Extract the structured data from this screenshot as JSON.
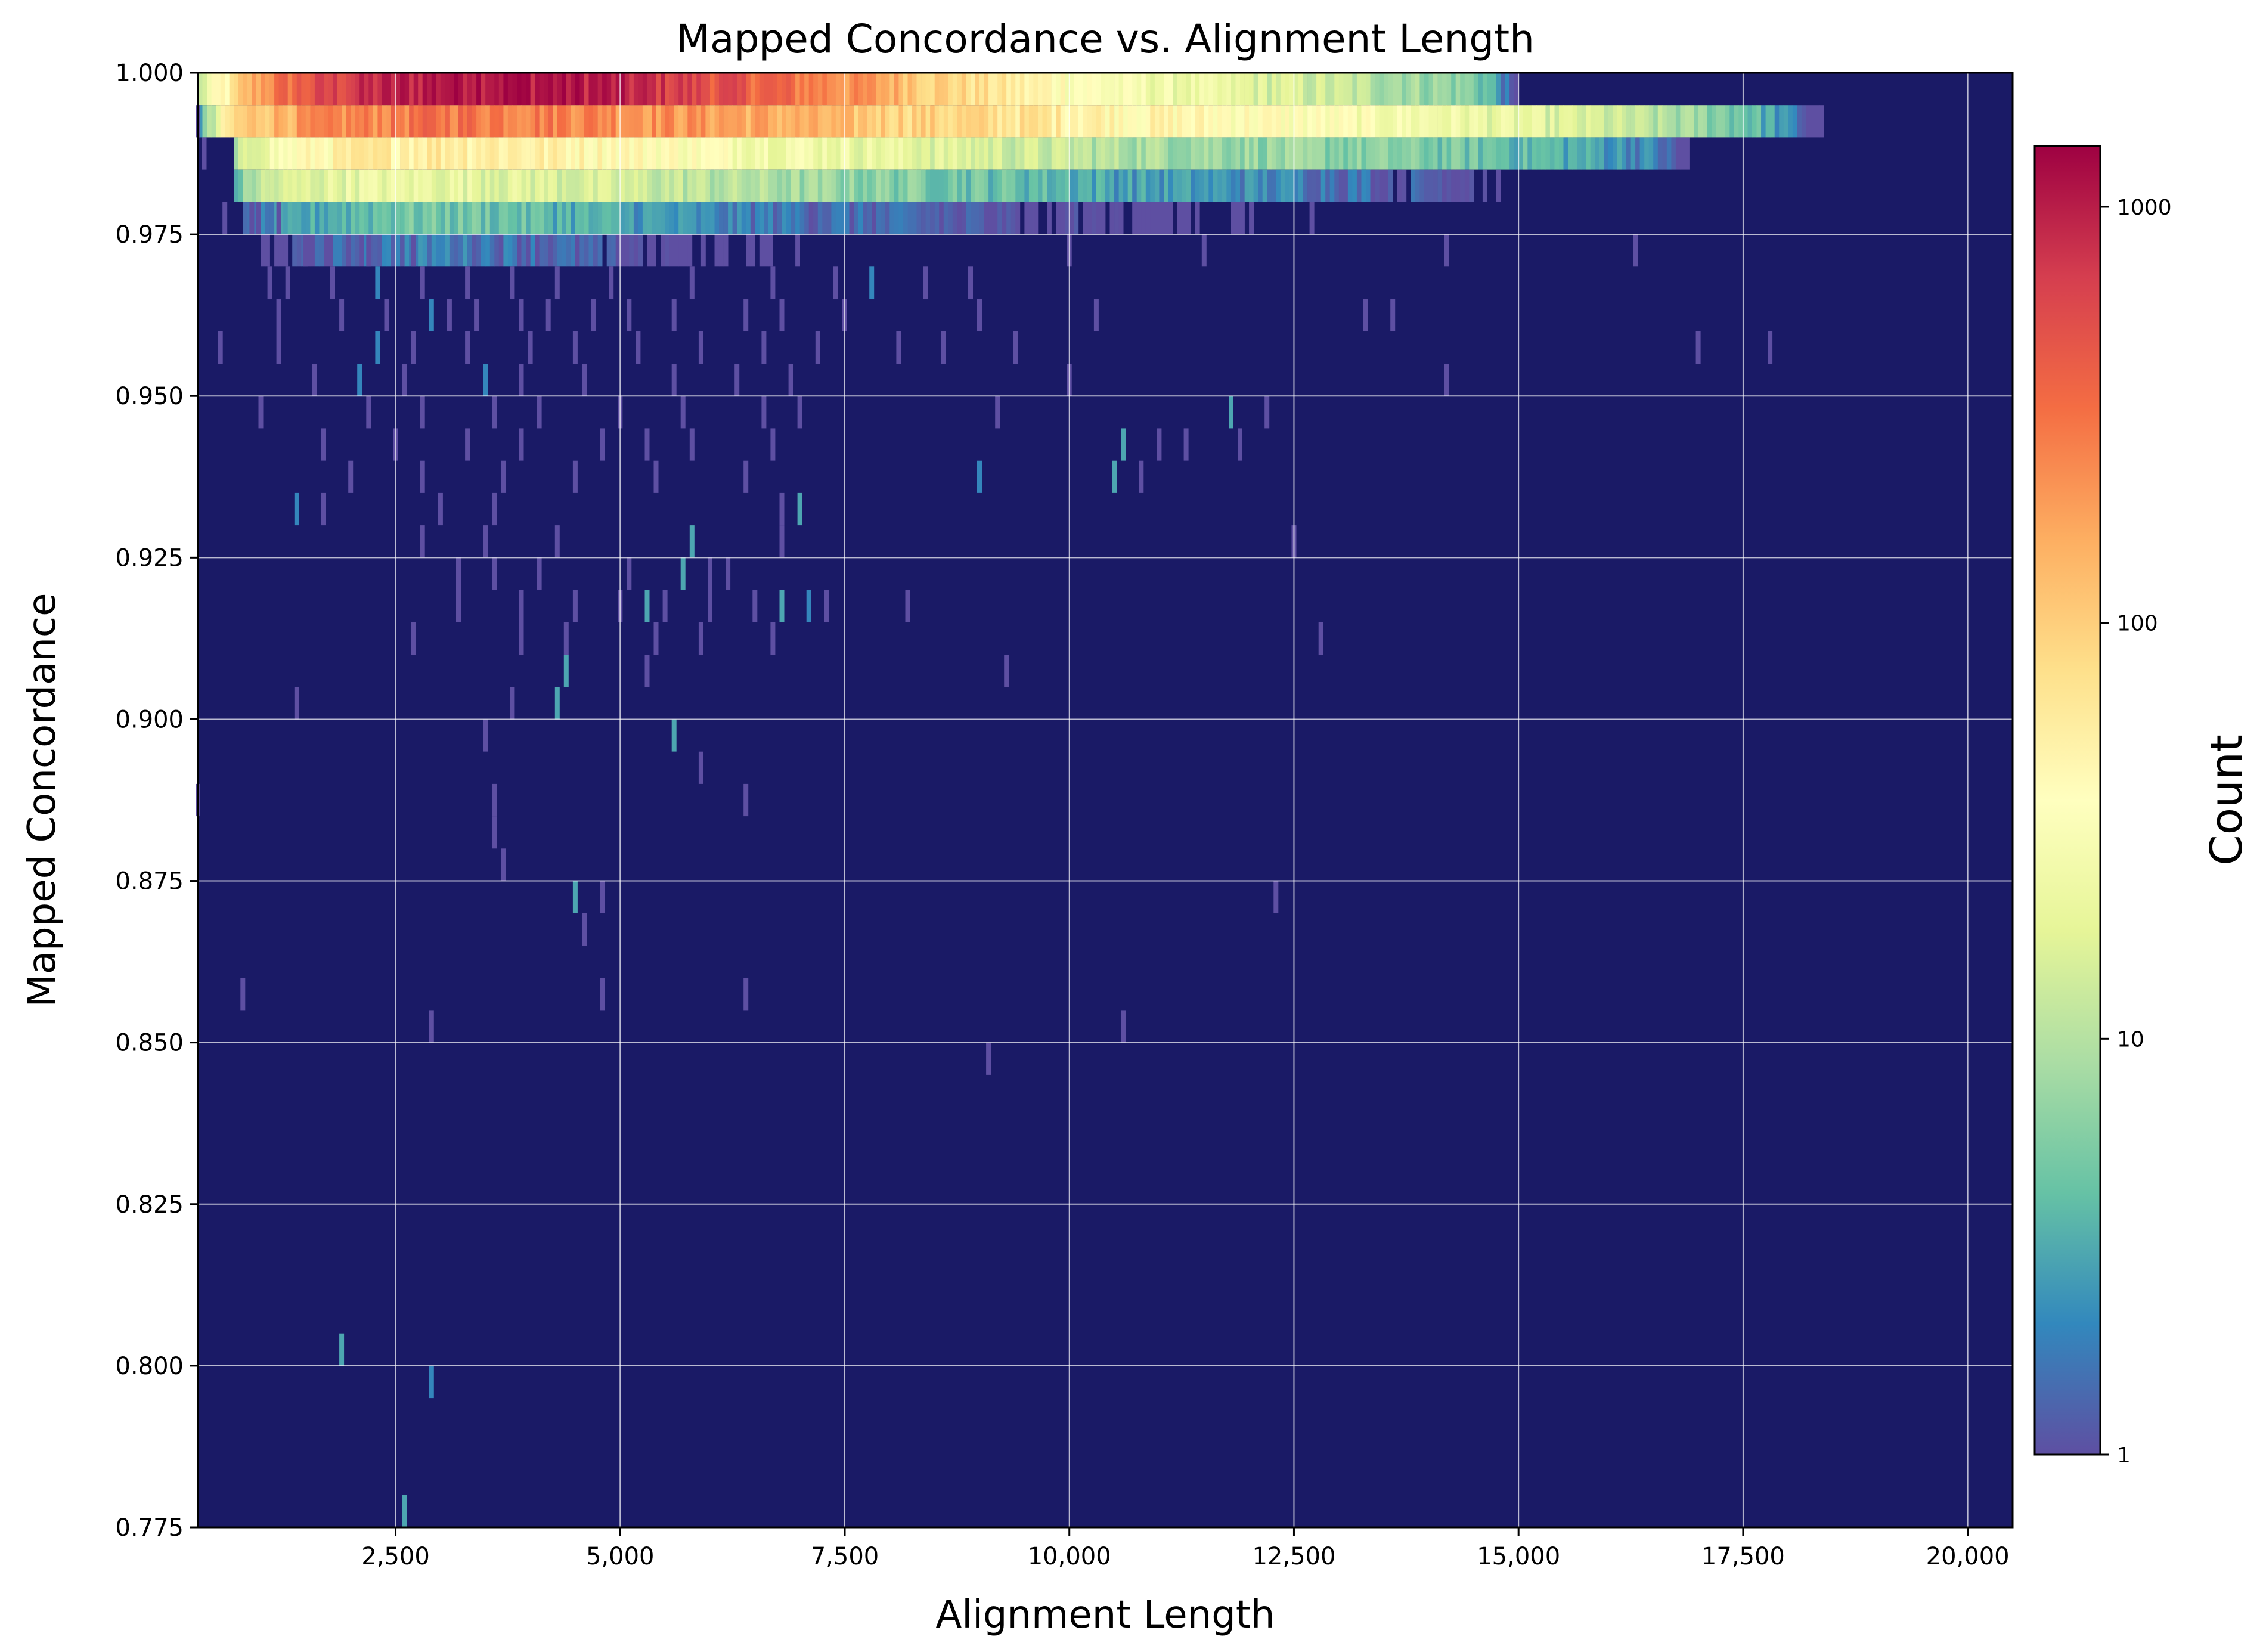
{
  "chart_data": {
    "type": "heatmap",
    "title": "Mapped Concordance vs. Alignment Length",
    "xlabel": "Alignment Length",
    "ylabel": "Mapped Concordance",
    "xlim": [
      300,
      20500
    ],
    "ylim": [
      0.775,
      1.0
    ],
    "xticks": [
      2500,
      5000,
      7500,
      10000,
      12500,
      15000,
      17500,
      20000
    ],
    "xtick_labels": [
      "2,500",
      "5,000",
      "7,500",
      "10,000",
      "12,500",
      "15,000",
      "17,500",
      "20,000"
    ],
    "yticks": [
      0.775,
      0.8,
      0.825,
      0.85,
      0.875,
      0.9,
      0.925,
      0.95,
      0.975,
      1.0
    ],
    "ytick_labels": [
      "0.775",
      "0.800",
      "0.825",
      "0.850",
      "0.875",
      "0.900",
      "0.925",
      "0.950",
      "0.975",
      "1.000"
    ],
    "grid": true,
    "background_color": "#1a1a66",
    "colorbar": {
      "label": "Count",
      "scale": "log",
      "range": [
        1,
        1400
      ],
      "ticks": [
        1,
        10,
        100,
        1000
      ],
      "tick_labels": [
        "1",
        "10",
        "100",
        "1000"
      ],
      "colormap": "Spectral_r"
    },
    "bands": [
      {
        "y_range": [
          0.995,
          1.0
        ],
        "profile": [
          [
            300,
            8
          ],
          [
            700,
            60
          ],
          [
            1000,
            200
          ],
          [
            2000,
            700
          ],
          [
            3300,
            1300
          ],
          [
            4600,
            1100
          ],
          [
            5800,
            600
          ],
          [
            7000,
            300
          ],
          [
            8500,
            100
          ],
          [
            9500,
            50
          ],
          [
            10500,
            30
          ],
          [
            12000,
            18
          ],
          [
            13500,
            10
          ],
          [
            14500,
            6
          ],
          [
            15000,
            0
          ]
        ]
      },
      {
        "y_range": [
          0.99,
          0.995
        ],
        "profile": [
          [
            300,
            2
          ],
          [
            500,
            12
          ],
          [
            700,
            80
          ],
          [
            1500,
            200
          ],
          [
            3000,
            330
          ],
          [
            4500,
            280
          ],
          [
            6000,
            200
          ],
          [
            7500,
            120
          ],
          [
            9000,
            80
          ],
          [
            10500,
            50
          ],
          [
            12000,
            40
          ],
          [
            13500,
            30
          ],
          [
            15000,
            20
          ],
          [
            16500,
            10
          ],
          [
            17500,
            5
          ],
          [
            18000,
            2
          ],
          [
            18500,
            0
          ]
        ]
      },
      {
        "y_range": [
          0.985,
          0.99
        ],
        "profile": [
          [
            700,
            6
          ],
          [
            1000,
            25
          ],
          [
            2000,
            55
          ],
          [
            3000,
            65
          ],
          [
            4500,
            50
          ],
          [
            6000,
            35
          ],
          [
            7500,
            24
          ],
          [
            9000,
            16
          ],
          [
            10500,
            10
          ],
          [
            12500,
            7
          ],
          [
            14500,
            5
          ],
          [
            16500,
            2
          ],
          [
            17000,
            0
          ]
        ]
      },
      {
        "y_range": [
          0.98,
          0.985
        ],
        "profile": [
          [
            700,
            3
          ],
          [
            1000,
            12
          ],
          [
            2000,
            22
          ],
          [
            3000,
            22
          ],
          [
            4500,
            16
          ],
          [
            6000,
            11
          ],
          [
            7500,
            7
          ],
          [
            9000,
            5
          ],
          [
            10500,
            3
          ],
          [
            12500,
            2
          ],
          [
            14500,
            1
          ],
          [
            15000,
            0
          ]
        ]
      },
      {
        "y_range": [
          0.975,
          0.98
        ],
        "profile": [
          [
            800,
            1
          ],
          [
            1500,
            3
          ],
          [
            2500,
            5
          ],
          [
            3500,
            5
          ],
          [
            4500,
            3.5
          ],
          [
            6000,
            2
          ],
          [
            7500,
            1.5
          ],
          [
            9500,
            1
          ],
          [
            10500,
            0.8
          ],
          [
            12000,
            0.5
          ],
          [
            12500,
            0
          ]
        ]
      },
      {
        "y_range": [
          0.97,
          0.975
        ],
        "profile": [
          [
            1000,
            0.6
          ],
          [
            2000,
            1.5
          ],
          [
            3000,
            2
          ],
          [
            4000,
            1.6
          ],
          [
            5000,
            1
          ],
          [
            6000,
            0.6
          ],
          [
            7000,
            0.3
          ],
          [
            8000,
            0
          ]
        ]
      }
    ],
    "sparse_points": [
      [
        300,
        0.9925,
        1
      ],
      [
        370,
        0.9875,
        1
      ],
      [
        600,
        0.9775,
        1
      ],
      [
        900,
        0.9775,
        1
      ],
      [
        1200,
        0.9775,
        1
      ],
      [
        1500,
        0.9725,
        1
      ],
      [
        2200,
        0.9725,
        1
      ],
      [
        2700,
        0.9725,
        1
      ],
      [
        1100,
        0.9675,
        1
      ],
      [
        1300,
        0.9675,
        1
      ],
      [
        1800,
        0.9675,
        1
      ],
      [
        2300,
        0.9675,
        2
      ],
      [
        2800,
        0.9675,
        1
      ],
      [
        3300,
        0.9675,
        1
      ],
      [
        3800,
        0.9675,
        1
      ],
      [
        4300,
        0.9675,
        1
      ],
      [
        4900,
        0.9675,
        1
      ],
      [
        5800,
        0.9675,
        1
      ],
      [
        6700,
        0.9675,
        1
      ],
      [
        7400,
        0.9675,
        1
      ],
      [
        8400,
        0.9675,
        1
      ],
      [
        8900,
        0.9675,
        1
      ],
      [
        10000,
        0.9725,
        1
      ],
      [
        11500,
        0.9725,
        1
      ],
      [
        12700,
        0.9775,
        1
      ],
      [
        14200,
        0.9725,
        1
      ],
      [
        16300,
        0.9725,
        1
      ],
      [
        1200,
        0.9625,
        1
      ],
      [
        1900,
        0.9625,
        1
      ],
      [
        2400,
        0.9625,
        1
      ],
      [
        2900,
        0.9625,
        2
      ],
      [
        3100,
        0.9625,
        1
      ],
      [
        3400,
        0.9625,
        1
      ],
      [
        3900,
        0.9625,
        1
      ],
      [
        4200,
        0.9625,
        1
      ],
      [
        4700,
        0.9625,
        1
      ],
      [
        5100,
        0.9625,
        1
      ],
      [
        5600,
        0.9625,
        1
      ],
      [
        6400,
        0.9625,
        1
      ],
      [
        6800,
        0.9625,
        1
      ],
      [
        7500,
        0.9625,
        1
      ],
      [
        7800,
        0.9675,
        2
      ],
      [
        9000,
        0.9625,
        1
      ],
      [
        10300,
        0.9625,
        1
      ],
      [
        13300,
        0.9625,
        1
      ],
      [
        13600,
        0.9625,
        1
      ],
      [
        550,
        0.9575,
        1
      ],
      [
        1200,
        0.9575,
        1
      ],
      [
        2300,
        0.9575,
        2
      ],
      [
        2700,
        0.9575,
        1
      ],
      [
        3300,
        0.9575,
        1
      ],
      [
        4000,
        0.9575,
        1
      ],
      [
        4500,
        0.9575,
        1
      ],
      [
        5200,
        0.9575,
        1
      ],
      [
        5900,
        0.9575,
        1
      ],
      [
        6600,
        0.9575,
        1
      ],
      [
        7200,
        0.9575,
        1
      ],
      [
        8100,
        0.9575,
        1
      ],
      [
        8600,
        0.9575,
        1
      ],
      [
        9400,
        0.9575,
        1
      ],
      [
        17000,
        0.9575,
        1
      ],
      [
        17800,
        0.9575,
        1
      ],
      [
        1600,
        0.9525,
        1
      ],
      [
        2100,
        0.9525,
        2
      ],
      [
        2600,
        0.9525,
        1
      ],
      [
        3500,
        0.9525,
        2
      ],
      [
        3900,
        0.9525,
        1
      ],
      [
        4600,
        0.9525,
        1
      ],
      [
        5600,
        0.9525,
        1
      ],
      [
        6300,
        0.9525,
        1
      ],
      [
        6900,
        0.9525,
        1
      ],
      [
        10000,
        0.9525,
        1
      ],
      [
        14200,
        0.9525,
        1
      ],
      [
        1000,
        0.9475,
        1
      ],
      [
        2200,
        0.9475,
        1
      ],
      [
        2800,
        0.9475,
        1
      ],
      [
        3600,
        0.9475,
        1
      ],
      [
        4100,
        0.9475,
        1
      ],
      [
        5000,
        0.9475,
        1
      ],
      [
        5700,
        0.9475,
        1
      ],
      [
        6600,
        0.9475,
        1
      ],
      [
        7000,
        0.9475,
        1
      ],
      [
        9200,
        0.9475,
        1
      ],
      [
        11800,
        0.9475,
        3
      ],
      [
        12200,
        0.9475,
        1
      ],
      [
        1700,
        0.9425,
        1
      ],
      [
        2500,
        0.9425,
        1
      ],
      [
        3300,
        0.9425,
        1
      ],
      [
        3900,
        0.9425,
        1
      ],
      [
        4800,
        0.9425,
        1
      ],
      [
        5300,
        0.9425,
        1
      ],
      [
        5800,
        0.9425,
        1
      ],
      [
        6700,
        0.9425,
        1
      ],
      [
        10600,
        0.9425,
        3
      ],
      [
        11000,
        0.9425,
        1
      ],
      [
        11300,
        0.9425,
        1
      ],
      [
        11900,
        0.9425,
        1
      ],
      [
        2000,
        0.9375,
        1
      ],
      [
        2800,
        0.9375,
        1
      ],
      [
        3700,
        0.9375,
        1
      ],
      [
        4500,
        0.9375,
        1
      ],
      [
        5400,
        0.9375,
        1
      ],
      [
        6400,
        0.9375,
        1
      ],
      [
        9000,
        0.9375,
        2
      ],
      [
        10500,
        0.9375,
        3
      ],
      [
        10800,
        0.9375,
        1
      ],
      [
        1400,
        0.9325,
        2
      ],
      [
        1700,
        0.9325,
        1
      ],
      [
        3000,
        0.9325,
        1
      ],
      [
        3600,
        0.9325,
        1
      ],
      [
        6800,
        0.9325,
        1
      ],
      [
        7000,
        0.9325,
        3
      ],
      [
        2800,
        0.9275,
        1
      ],
      [
        3500,
        0.9275,
        1
      ],
      [
        4300,
        0.9275,
        1
      ],
      [
        5800,
        0.9275,
        3
      ],
      [
        6800,
        0.9275,
        1
      ],
      [
        12500,
        0.9275,
        1
      ],
      [
        3200,
        0.9225,
        1
      ],
      [
        3600,
        0.9225,
        1
      ],
      [
        4100,
        0.9225,
        1
      ],
      [
        5100,
        0.9225,
        1
      ],
      [
        5700,
        0.9225,
        3
      ],
      [
        6000,
        0.9225,
        1
      ],
      [
        6200,
        0.9225,
        1
      ],
      [
        3200,
        0.9175,
        1
      ],
      [
        3900,
        0.9175,
        1
      ],
      [
        4500,
        0.9175,
        1
      ],
      [
        5000,
        0.9175,
        1
      ],
      [
        5300,
        0.9175,
        3
      ],
      [
        5500,
        0.9175,
        1
      ],
      [
        6000,
        0.9175,
        1
      ],
      [
        6500,
        0.9175,
        1
      ],
      [
        6800,
        0.9175,
        3
      ],
      [
        7100,
        0.9175,
        2
      ],
      [
        7300,
        0.9175,
        1
      ],
      [
        8200,
        0.9175,
        1
      ],
      [
        2700,
        0.9125,
        1
      ],
      [
        3900,
        0.9125,
        1
      ],
      [
        4400,
        0.9125,
        1
      ],
      [
        5400,
        0.9125,
        1
      ],
      [
        5900,
        0.9125,
        1
      ],
      [
        6700,
        0.9125,
        1
      ],
      [
        12800,
        0.9125,
        1
      ],
      [
        4400,
        0.9075,
        3
      ],
      [
        5300,
        0.9075,
        1
      ],
      [
        9300,
        0.9075,
        1
      ],
      [
        1400,
        0.9025,
        1
      ],
      [
        3800,
        0.9025,
        1
      ],
      [
        4300,
        0.9025,
        3
      ],
      [
        3500,
        0.8975,
        1
      ],
      [
        5600,
        0.8975,
        3
      ],
      [
        5900,
        0.8925,
        1
      ],
      [
        300,
        0.8875,
        1
      ],
      [
        3600,
        0.8875,
        1
      ],
      [
        6400,
        0.8875,
        1
      ],
      [
        3600,
        0.8825,
        1
      ],
      [
        3700,
        0.8775,
        1
      ],
      [
        4500,
        0.8725,
        3
      ],
      [
        4800,
        0.8725,
        1
      ],
      [
        12300,
        0.8725,
        1
      ],
      [
        4600,
        0.8675,
        1
      ],
      [
        800,
        0.8575,
        1
      ],
      [
        4800,
        0.8575,
        1
      ],
      [
        6400,
        0.8575,
        1
      ],
      [
        2900,
        0.8525,
        1
      ],
      [
        10600,
        0.8525,
        1
      ],
      [
        9100,
        0.8475,
        1
      ],
      [
        1900,
        0.8025,
        3
      ],
      [
        2900,
        0.7975,
        2
      ],
      [
        2600,
        0.7775,
        3
      ]
    ]
  }
}
